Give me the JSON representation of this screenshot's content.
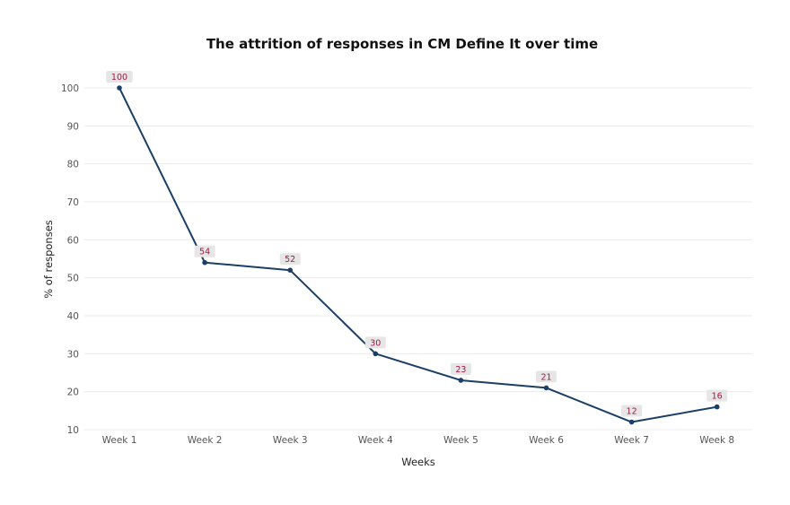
{
  "chart_data": {
    "type": "line",
    "title": "The attrition of responses in CM Define It over time",
    "xlabel": "Weeks",
    "ylabel": "% of responses",
    "categories": [
      "Week 1",
      "Week 2",
      "Week 3",
      "Week 4",
      "Week 5",
      "Week 6",
      "Week 7",
      "Week 8"
    ],
    "series": [
      {
        "values": [
          100,
          54,
          52,
          30,
          23,
          21,
          12,
          16
        ]
      }
    ],
    "ylim": [
      10,
      100
    ],
    "yticks": [
      10,
      20,
      30,
      40,
      50,
      60,
      70,
      80,
      90,
      100
    ],
    "grid": true,
    "data_labels": true,
    "colors": {
      "line": "#1b3f66",
      "label_text": "#a01848",
      "label_bg": "#e6e6e6",
      "grid": "#ececec"
    }
  }
}
